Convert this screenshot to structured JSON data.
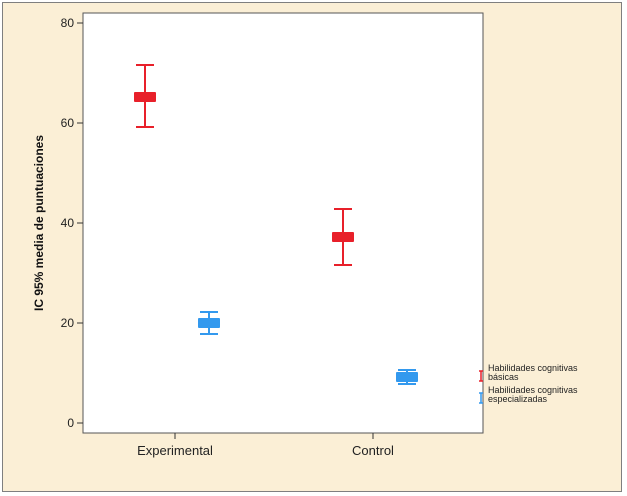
{
  "chart_data": {
    "type": "errorbar",
    "ylabel": "IC 95% media de puntuaciones",
    "xlabel": "",
    "categories": [
      "Experimental",
      "Control"
    ],
    "ylim": [
      -2,
      82
    ],
    "yticks": [
      0,
      20,
      40,
      60,
      80
    ],
    "ytick_labels": [
      "0",
      "20",
      "40",
      "60",
      "80"
    ],
    "grid": false,
    "legend_position": "right",
    "series": [
      {
        "name": "Habilidades cognitivas básicas",
        "legend_lines": [
          "Habilidades cognitivas",
          "básicas"
        ],
        "color": "#e8202a",
        "points": [
          {
            "category": "Experimental",
            "mean": 65.2,
            "lower": 59.2,
            "upper": 71.6
          },
          {
            "category": "Control",
            "mean": 37.2,
            "lower": 31.6,
            "upper": 42.8
          }
        ]
      },
      {
        "name": "Habilidades cognitivas especializadas",
        "legend_lines": [
          "Habilidades cognitivas",
          "especializadas"
        ],
        "color": "#3399ee",
        "points": [
          {
            "category": "Experimental",
            "mean": 20.0,
            "lower": 17.8,
            "upper": 22.2
          },
          {
            "category": "Control",
            "mean": 9.2,
            "lower": 7.8,
            "upper": 10.6
          }
        ]
      }
    ]
  }
}
